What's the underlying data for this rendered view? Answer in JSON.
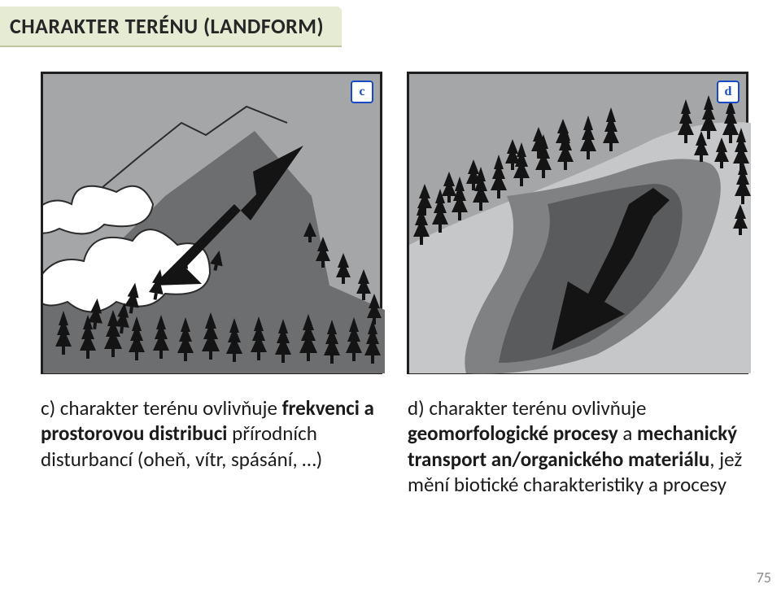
{
  "title": "CHARAKTER TERÉNU (LANDFORM)",
  "pageNumber": "75",
  "panels": {
    "left": {
      "label": "c",
      "sky": "#a5a6a8",
      "cloud_fill": "#ffffff",
      "cloud_stroke": "#2b2b2b",
      "mountain_dark": "#6d6e70",
      "ground_dark": "#6d6e70",
      "tree_fill": "#141414",
      "arrow_fill": "#141414"
    },
    "right": {
      "label": "d",
      "sky": "#a5a6a8",
      "ground_light": "#c6c7c8",
      "valley_mid": "#808183",
      "valley_dark": "#5a5b5d",
      "tree_fill": "#141414",
      "arrow_fill": "#141414"
    }
  },
  "captions": {
    "c_html": "c) charakter terénu ovlivňuje <b>frekvenci a prostorovou distribuci</b> přírodních disturbancí (oheň, vítr, spásání, …)",
    "d_html": "d) charakter terénu ovlivňuje <b>geomorfologické procesy</b> a <b>mechanický transport an/organického materiálu</b>, jež mění biotické charakteristiky a procesy"
  }
}
